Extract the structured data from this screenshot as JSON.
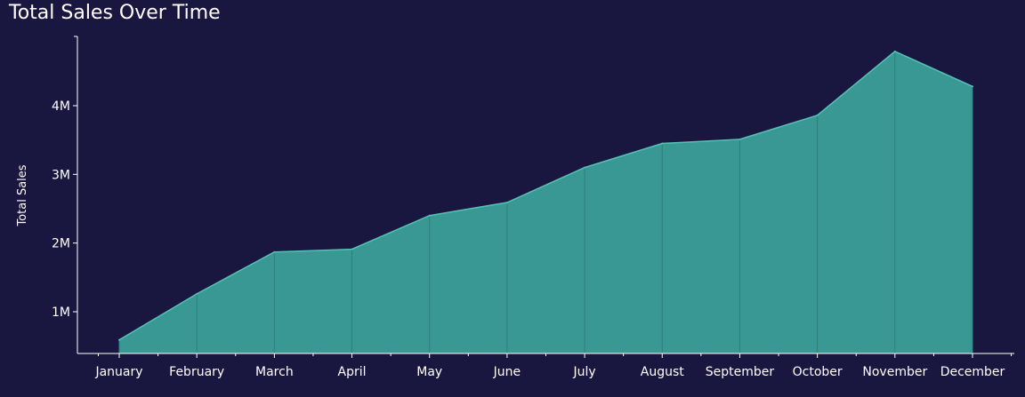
{
  "colors": {
    "background": "#19173f",
    "area_fill": "#3a9894",
    "area_stroke": "#53c2b4",
    "axis": "#ffffff",
    "text": "#ffffff"
  },
  "chart_data": {
    "type": "area",
    "title": "Total Sales Over Time",
    "xlabel": "",
    "ylabel": "Total Sales",
    "categories": [
      "January",
      "February",
      "March",
      "April",
      "May",
      "June",
      "July",
      "August",
      "September",
      "October",
      "November",
      "December"
    ],
    "series": [
      {
        "values": [
          590000,
          1260000,
          1870000,
          1910000,
          2400000,
          2590000,
          3100000,
          3450000,
          3510000,
          3860000,
          4790000,
          4280000
        ]
      }
    ],
    "yticks": [
      1000000,
      2000000,
      3000000,
      4000000
    ],
    "ytick_labels": [
      "1M",
      "2M",
      "3M",
      "4M"
    ],
    "ylim": [
      0,
      5000000
    ],
    "grid": false,
    "legend": "none"
  }
}
